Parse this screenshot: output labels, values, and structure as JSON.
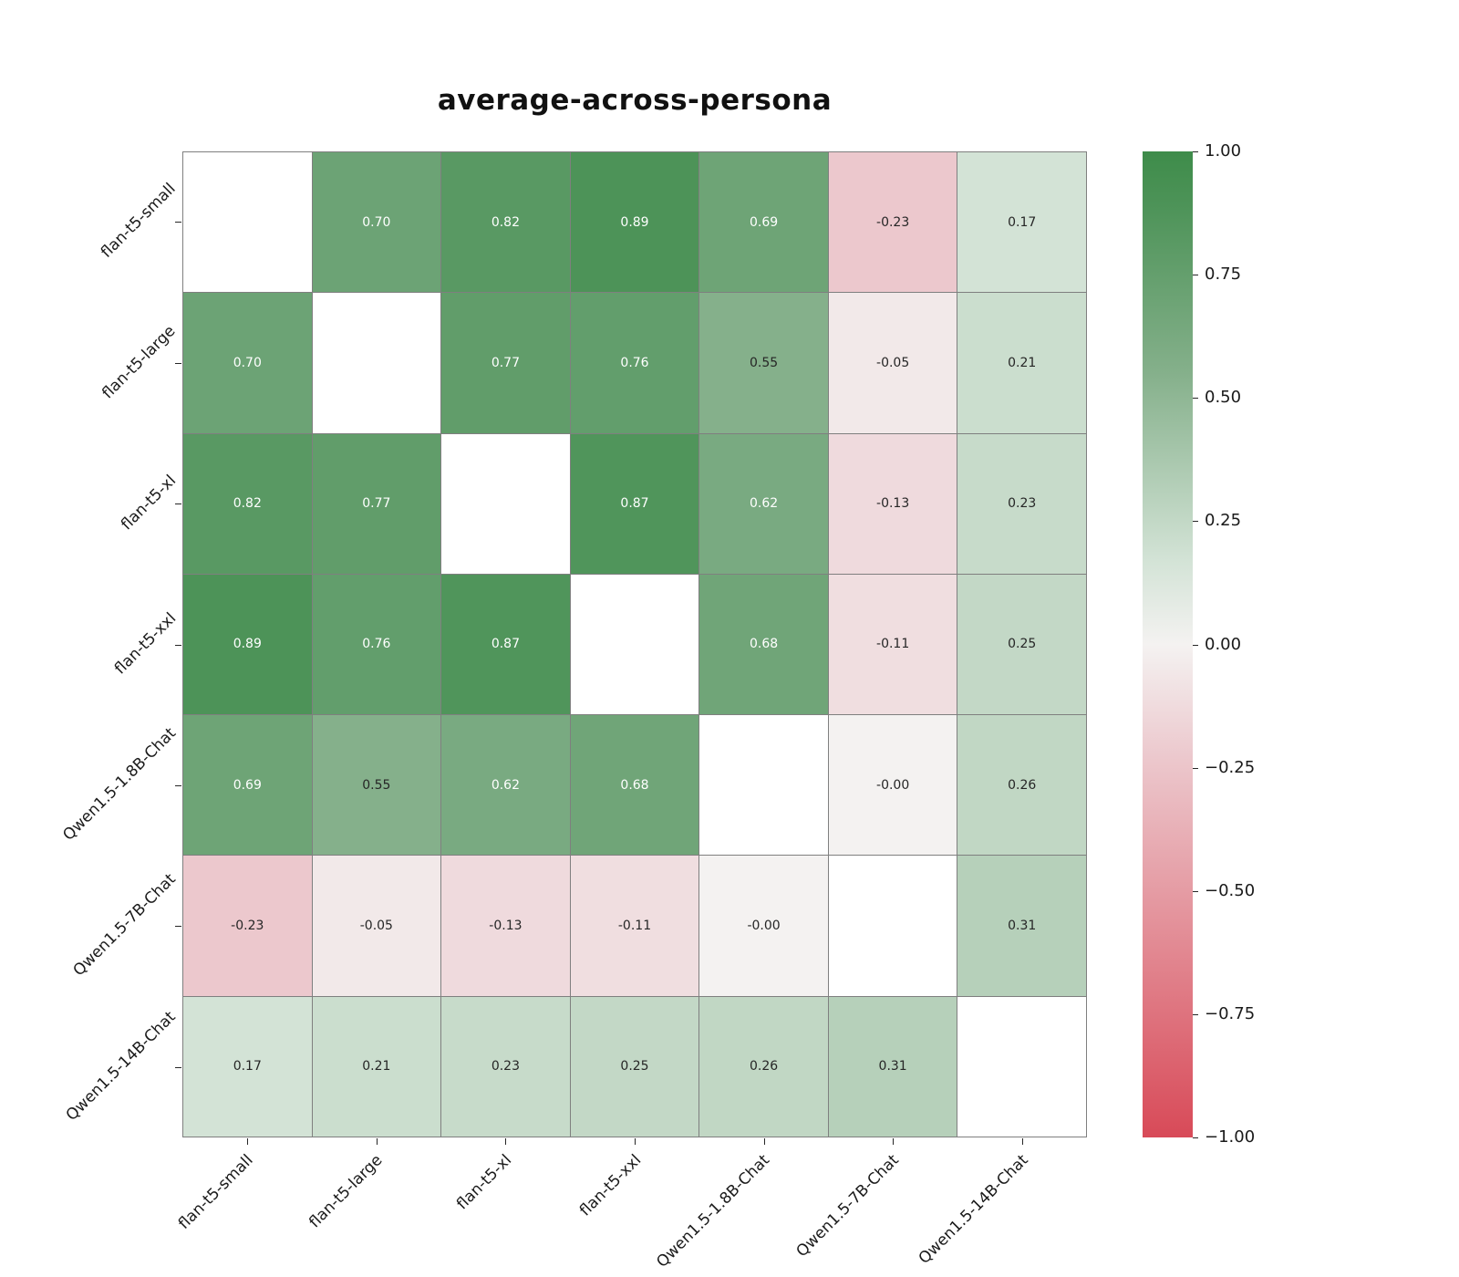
{
  "title": "average-across-persona",
  "chart_data": {
    "type": "heatmap",
    "title": "average-across-persona",
    "x_labels": [
      "flan-t5-small",
      "flan-t5-large",
      "flan-t5-xl",
      "flan-t5-xxl",
      "Qwen1.5-1.8B-Chat",
      "Qwen1.5-7B-Chat",
      "Qwen1.5-14B-Chat"
    ],
    "y_labels": [
      "flan-t5-small",
      "flan-t5-large",
      "flan-t5-xl",
      "flan-t5-xxl",
      "Qwen1.5-1.8B-Chat",
      "Qwen1.5-7B-Chat",
      "Qwen1.5-14B-Chat"
    ],
    "values": [
      [
        null,
        0.7,
        0.82,
        0.89,
        0.69,
        -0.23,
        0.17
      ],
      [
        0.7,
        null,
        0.77,
        0.76,
        0.55,
        -0.05,
        0.21
      ],
      [
        0.82,
        0.77,
        null,
        0.87,
        0.62,
        -0.13,
        0.23
      ],
      [
        0.89,
        0.76,
        0.87,
        null,
        0.68,
        -0.11,
        0.25
      ],
      [
        0.69,
        0.55,
        0.62,
        0.68,
        null,
        -0.0,
        0.26
      ],
      [
        -0.23,
        -0.05,
        -0.13,
        -0.11,
        -0.0,
        null,
        0.31
      ],
      [
        0.17,
        0.21,
        0.23,
        0.25,
        0.26,
        0.31,
        null
      ]
    ],
    "annotations": [
      [
        null,
        "0.70",
        "0.82",
        "0.89",
        "0.69",
        "-0.23",
        "0.17"
      ],
      [
        "0.70",
        null,
        "0.77",
        "0.76",
        "0.55",
        "-0.05",
        "0.21"
      ],
      [
        "0.82",
        "0.77",
        null,
        "0.87",
        "0.62",
        "-0.13",
        "0.23"
      ],
      [
        "0.89",
        "0.76",
        "0.87",
        null,
        "0.68",
        "-0.11",
        "0.25"
      ],
      [
        "0.69",
        "0.55",
        "0.62",
        "0.68",
        null,
        "-0.00",
        "0.26"
      ],
      [
        "-0.23",
        "-0.05",
        "-0.13",
        "-0.11",
        "-0.00",
        null,
        "0.31"
      ],
      [
        "0.17",
        "0.21",
        "0.23",
        "0.25",
        "0.26",
        "0.31",
        null
      ]
    ],
    "missing_cell_color": "#ffffff",
    "gridline_color": "#7f7f7f",
    "annotation_text_colors": {
      "on_light": "#262626",
      "on_dark": "#ffffff"
    },
    "colorbar": {
      "vmin": -1.0,
      "vmax": 1.0,
      "tick_labels": [
        "1.00",
        "0.75",
        "0.50",
        "0.25",
        "0.00",
        "−0.25",
        "−0.50",
        "−0.75",
        "−1.00"
      ],
      "tick_values": [
        1.0,
        0.75,
        0.5,
        0.25,
        0.0,
        -0.25,
        -0.5,
        -0.75,
        -1.0
      ],
      "gradient_stops": [
        {
          "value": 1.0,
          "color": "#3e8c4a"
        },
        {
          "value": 0.89,
          "color": "#4d9358"
        },
        {
          "value": 0.55,
          "color": "#85b08b"
        },
        {
          "value": 0.17,
          "color": "#d3e3d6"
        },
        {
          "value": 0.0,
          "color": "#f4f2f1"
        },
        {
          "value": -0.23,
          "color": "#ecc8cd"
        },
        {
          "value": -1.0,
          "color": "#d84a58"
        }
      ]
    }
  }
}
